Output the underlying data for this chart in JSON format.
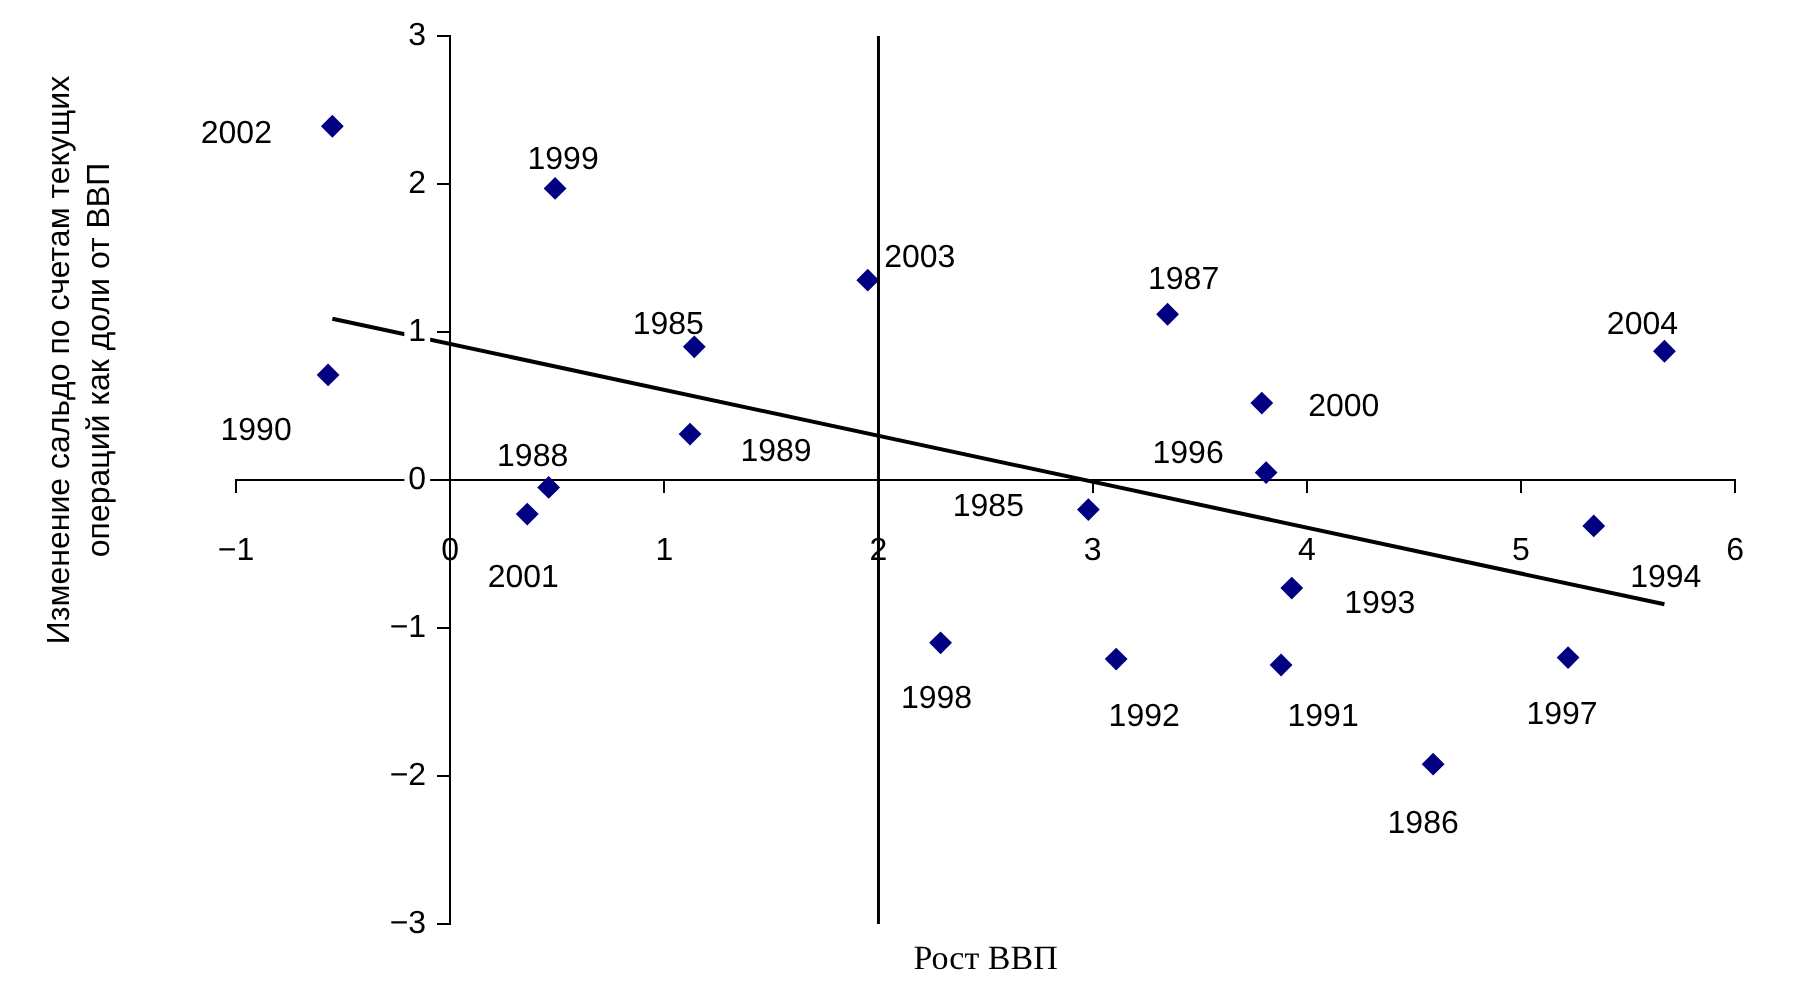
{
  "chart_data": {
    "type": "scatter",
    "xlabel": "Рост ВВП",
    "ylabel": "Изменение сальдо по счетам текущих операций как доли от ВВП",
    "x": [
      -0.55,
      0.49,
      1.95,
      1.14,
      3.35,
      5.67,
      -0.57,
      3.79,
      1.12,
      0.46,
      3.81,
      0.36,
      2.98,
      5.34,
      3.93,
      2.29,
      3.11,
      3.88,
      5.22,
      4.59
    ],
    "series": [
      {
        "color": "#000080",
        "values": [
          2.39,
          1.97,
          1.35,
          0.9,
          1.12,
          0.87,
          0.71,
          0.52,
          0.31,
          -0.05,
          0.05,
          -0.23,
          -0.2,
          -0.31,
          -0.73,
          -1.1,
          -1.21,
          -1.25,
          -1.2,
          -1.92
        ]
      },
      {
        "type": "line",
        "color": "#000000",
        "x": [
          -0.55,
          5.67
        ],
        "values": [
          1.09,
          -0.84
        ],
        "marker": "none"
      }
    ],
    "annotations": [
      {
        "text": "2002",
        "x": -0.55,
        "y": 2.39
      },
      {
        "text": "1999",
        "x": 0.49,
        "y": 1.97
      },
      {
        "text": "2003",
        "x": 1.95,
        "y": 1.35
      },
      {
        "text": "1985",
        "x": 1.14,
        "y": 0.9
      },
      {
        "text": "1987",
        "x": 3.35,
        "y": 1.12
      },
      {
        "text": "2004",
        "x": 5.67,
        "y": 0.87
      },
      {
        "text": "1990",
        "x": -0.57,
        "y": 0.71
      },
      {
        "text": "2000",
        "x": 3.79,
        "y": 0.52
      },
      {
        "text": "1989",
        "x": 1.12,
        "y": 0.31
      },
      {
        "text": "1988",
        "x": 0.46,
        "y": -0.05
      },
      {
        "text": "1996",
        "x": 3.81,
        "y": 0.05
      },
      {
        "text": "2001",
        "x": 0.36,
        "y": -0.23
      },
      {
        "text": "1985",
        "x": 2.98,
        "y": -0.2
      },
      {
        "text": "1994",
        "x": 5.34,
        "y": -0.31
      },
      {
        "text": "1993",
        "x": 3.93,
        "y": -0.73
      },
      {
        "text": "1998",
        "x": 2.29,
        "y": -1.1
      },
      {
        "text": "1992",
        "x": 3.11,
        "y": -1.21
      },
      {
        "text": "1991",
        "x": 3.88,
        "y": -1.25
      },
      {
        "text": "1997",
        "x": 5.22,
        "y": -1.2
      },
      {
        "text": "1986",
        "x": 4.59,
        "y": -1.92
      }
    ],
    "ref_lines": [
      {
        "axis": "x",
        "value": 2,
        "color": "#000000"
      }
    ],
    "xlim": [
      -1,
      6
    ],
    "ylim": [
      -3,
      3
    ],
    "xticks": [
      -1,
      0,
      1,
      2,
      3,
      4,
      5,
      6
    ],
    "yticks": [
      -3,
      -2,
      -1,
      0,
      1,
      2,
      3
    ],
    "grid": false,
    "legend": false,
    "marker": "diamond"
  }
}
